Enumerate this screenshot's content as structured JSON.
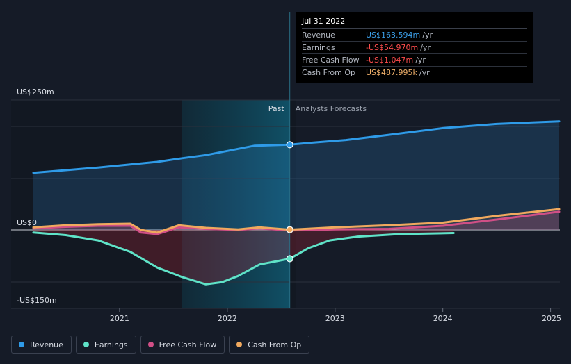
{
  "tooltip": {
    "date": "Jul 31 2022",
    "rows": [
      {
        "label": "Revenue",
        "value": "US$163.594m",
        "unit": "/yr",
        "color": "#3b9ee8"
      },
      {
        "label": "Earnings",
        "value": "-US$54.970m",
        "unit": "/yr",
        "color": "#ff4d4d"
      },
      {
        "label": "Free Cash Flow",
        "value": "-US$1.047m",
        "unit": "/yr",
        "color": "#ff4d4d"
      },
      {
        "label": "Cash From Op",
        "value": "US$487.995k",
        "unit": "/yr",
        "color": "#f0b06a"
      }
    ]
  },
  "legend": [
    {
      "label": "Revenue",
      "color": "#2f9be8"
    },
    {
      "label": "Earnings",
      "color": "#5fe3c8"
    },
    {
      "label": "Free Cash Flow",
      "color": "#d14f86"
    },
    {
      "label": "Cash From Op",
      "color": "#f0a95e"
    }
  ],
  "chart_data": {
    "type": "line",
    "y_labels": {
      "top": "US$250m",
      "zero": "US$0",
      "bottom": "-US$150m"
    },
    "ylim": [
      -150,
      250
    ],
    "xlim": [
      2020.2,
      2025.08
    ],
    "x_ticks": [
      2021,
      2022,
      2023,
      2024,
      2025
    ],
    "past_label": "Past",
    "forecast_label": "Analysts Forecasts",
    "divider_x": 2022.58,
    "highlight_start": 2021.58,
    "series": [
      {
        "name": "Revenue",
        "color": "#2f9be8",
        "points": [
          [
            2020.2,
            110
          ],
          [
            2020.5,
            115
          ],
          [
            2020.8,
            120
          ],
          [
            2021.1,
            126
          ],
          [
            2021.35,
            131
          ],
          [
            2021.58,
            138
          ],
          [
            2021.8,
            144
          ],
          [
            2022.0,
            152
          ],
          [
            2022.25,
            162
          ],
          [
            2022.58,
            164
          ],
          [
            2022.8,
            168
          ],
          [
            2023.1,
            173
          ],
          [
            2023.5,
            183
          ],
          [
            2024.0,
            196
          ],
          [
            2024.5,
            204
          ],
          [
            2025.08,
            209
          ]
        ]
      },
      {
        "name": "Earnings",
        "color": "#5fe3c8",
        "points": [
          [
            2020.2,
            -5
          ],
          [
            2020.5,
            -10
          ],
          [
            2020.8,
            -20
          ],
          [
            2021.1,
            -42
          ],
          [
            2021.35,
            -72
          ],
          [
            2021.58,
            -90
          ],
          [
            2021.8,
            -104
          ],
          [
            2021.95,
            -100
          ],
          [
            2022.1,
            -88
          ],
          [
            2022.3,
            -66
          ],
          [
            2022.58,
            -55
          ],
          [
            2022.75,
            -35
          ],
          [
            2022.95,
            -20
          ],
          [
            2023.2,
            -13
          ],
          [
            2023.6,
            -8
          ],
          [
            2024.1,
            -6
          ]
        ]
      },
      {
        "name": "Free Cash Flow",
        "color": "#d14f86",
        "points": [
          [
            2020.2,
            3
          ],
          [
            2020.5,
            6
          ],
          [
            2020.8,
            8
          ],
          [
            2021.1,
            8
          ],
          [
            2021.2,
            -5
          ],
          [
            2021.35,
            -8
          ],
          [
            2021.55,
            5
          ],
          [
            2021.8,
            2
          ],
          [
            2022.1,
            0
          ],
          [
            2022.3,
            3
          ],
          [
            2022.58,
            -1
          ],
          [
            2023.0,
            1
          ],
          [
            2023.5,
            2
          ],
          [
            2024.0,
            8
          ],
          [
            2024.5,
            20
          ],
          [
            2025.08,
            35
          ]
        ]
      },
      {
        "name": "Cash From Op",
        "color": "#f0a95e",
        "points": [
          [
            2020.2,
            5
          ],
          [
            2020.5,
            9
          ],
          [
            2020.8,
            11
          ],
          [
            2021.1,
            12
          ],
          [
            2021.2,
            0
          ],
          [
            2021.35,
            -5
          ],
          [
            2021.55,
            9
          ],
          [
            2021.8,
            4
          ],
          [
            2022.1,
            1
          ],
          [
            2022.3,
            5
          ],
          [
            2022.58,
            0.5
          ],
          [
            2023.0,
            5
          ],
          [
            2023.5,
            9
          ],
          [
            2024.0,
            14
          ],
          [
            2024.5,
            27
          ],
          [
            2025.08,
            40
          ]
        ]
      }
    ],
    "markers": [
      {
        "series": "Revenue",
        "x": 2022.58,
        "y": 164
      },
      {
        "series": "Earnings",
        "x": 2022.58,
        "y": -55
      },
      {
        "series": "Cash From Op",
        "x": 2022.58,
        "y": 0.5
      }
    ]
  }
}
